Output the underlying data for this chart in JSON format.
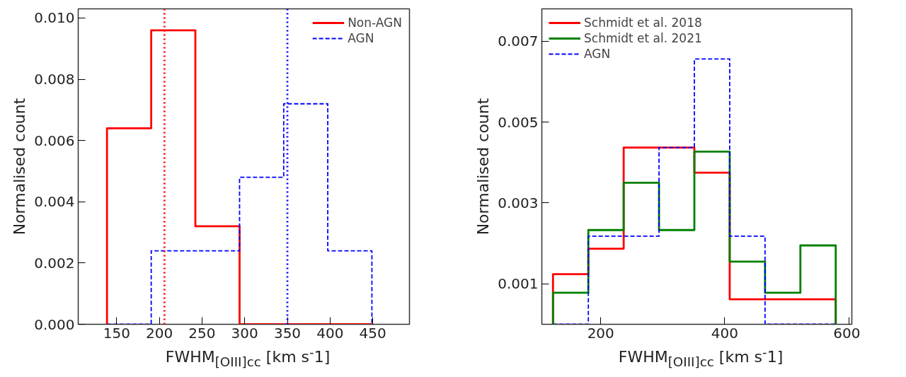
{
  "chart_data": [
    {
      "type": "histogram",
      "ylabel": "Normalised count",
      "xlabel": "FWHM$_{[OIII]cc}$ [km s$^{-}$1]",
      "bins": [
        138.7,
        190.5,
        242.2,
        294,
        345.7,
        397.3,
        449
      ],
      "series": [
        {
          "name": "Non-AGN",
          "color": "#ff0000",
          "line_style": "solid",
          "values": [
            0.0064,
            0.0096,
            0.0032,
            0,
            0,
            0
          ]
        },
        {
          "name": "AGN",
          "color": "#0000ff",
          "line_style": "dashed",
          "values": [
            0,
            0.0024,
            0.0024,
            0.0048,
            0.0072,
            0.0024
          ]
        }
      ],
      "xlim": [
        105,
        493
      ],
      "xticks": [
        150,
        200,
        250,
        300,
        350,
        400,
        450
      ],
      "ylim": [
        0,
        0.0103
      ],
      "yticks": [
        {
          "value": 0,
          "label": "0.000"
        },
        {
          "value": 0.002,
          "label": "0.002"
        },
        {
          "value": 0.004,
          "label": "0.004"
        },
        {
          "value": 0.006,
          "label": "0.006"
        },
        {
          "value": 0.008,
          "label": "0.008"
        },
        {
          "value": 0.01,
          "label": "0.010"
        }
      ],
      "ref_lines": [
        {
          "axis": "x",
          "value": 206,
          "color": "#ff0000",
          "line_style": "dotted"
        },
        {
          "axis": "x",
          "value": 350,
          "color": "#0000ff",
          "line_style": "dotted"
        }
      ],
      "grid": false,
      "legend": "top right"
    },
    {
      "type": "histogram",
      "ylabel": "Normalised count",
      "xlabel": "FWHM$_{[OIII]cc}$ [km s$^{-}$1]",
      "bins": [
        123,
        180,
        237,
        294,
        351,
        408,
        465,
        522,
        579
      ],
      "series": [
        {
          "name": "Schmidt et al. 2018",
          "color": "#ff0000",
          "line_style": "solid",
          "values": [
            0.00124,
            0.00187,
            0.00437,
            0.00437,
            0.00375,
            0.00062,
            0.00062,
            0.00062
          ]
        },
        {
          "name": "Schmidt et al. 2021",
          "color": "#008000",
          "line_style": "solid",
          "values": [
            0.00078,
            0.00233,
            0.0035,
            0.00233,
            0.00427,
            0.00155,
            0.00078,
            0.00195
          ]
        },
        {
          "name": "AGN",
          "color": "#0000ff",
          "line_style": "dashed",
          "values": [
            0,
            0.00218,
            0.00218,
            0.00437,
            0.00656,
            0.00218,
            0,
            0
          ]
        }
      ],
      "xlim": [
        105,
        605
      ],
      "xticks": [
        200,
        400,
        600
      ],
      "ylim": [
        0,
        0.0078
      ],
      "yticks": [
        {
          "value": 0.001,
          "label": "0.001"
        },
        {
          "value": 0.003,
          "label": "0.003"
        },
        {
          "value": 0.005,
          "label": "0.005"
        },
        {
          "value": 0.007,
          "label": "0.007"
        }
      ],
      "grid": false,
      "legend": "top left"
    }
  ]
}
